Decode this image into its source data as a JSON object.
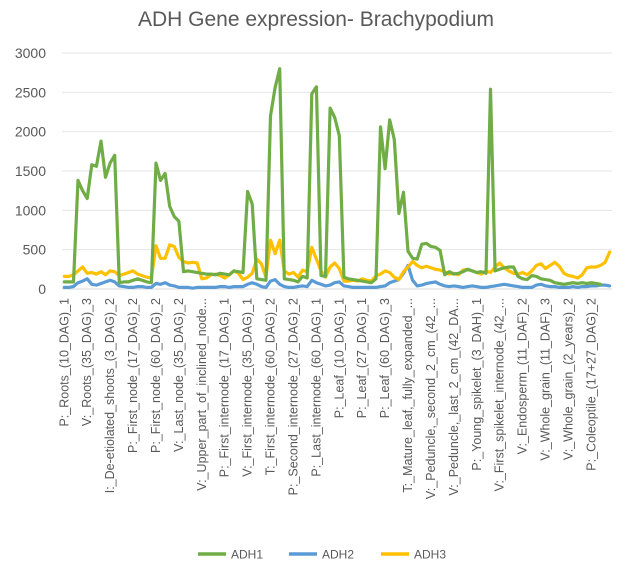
{
  "chart_data": {
    "type": "line",
    "title": "ADH Gene expression- Brachypodium",
    "ylim": [
      0,
      3000
    ],
    "yticks": [
      0,
      500,
      1000,
      1500,
      2000,
      2500,
      3000
    ],
    "grid": true,
    "legend_position": "bottom",
    "n_points": 120,
    "x_tick_labels": [
      {
        "index": 0,
        "label": "P:_Roots_(10_DAG)_1"
      },
      {
        "index": 5,
        "label": "V:_Roots_(35_DAG)_3"
      },
      {
        "index": 10,
        "label": "I:_De-etiolated_shoots_(3_DAG)_2"
      },
      {
        "index": 15,
        "label": "P:_First_node_(17_DAG)_2"
      },
      {
        "index": 20,
        "label": "P:_First_node_(60_DAG)_2"
      },
      {
        "index": 25,
        "label": "V:_Last_node_(35_DAG)_2"
      },
      {
        "index": 30,
        "label": "V:_Upper_part_of_inclined_node..."
      },
      {
        "index": 35,
        "label": "P:_First_internode_(17_DAG)_1"
      },
      {
        "index": 40,
        "label": "V:_First_internode_(35_DAG)_1"
      },
      {
        "index": 45,
        "label": "T:_First_internode_(60_DAG)_2"
      },
      {
        "index": 50,
        "label": "P:_Second_internode_(27_DAG)_2"
      },
      {
        "index": 55,
        "label": "P:_Last_internode_(60_DAG)_1"
      },
      {
        "index": 60,
        "label": "P:_Leaf_(10_DAG)_1"
      },
      {
        "index": 65,
        "label": "P:_Leaf_(27_DAG)_1"
      },
      {
        "index": 70,
        "label": "P:_Leaf_(60_DAG)_3"
      },
      {
        "index": 75,
        "label": "T:_Mature_leaf,_fully_expanded_..."
      },
      {
        "index": 80,
        "label": "V:_Peduncle,_second_2_cm_(42_..."
      },
      {
        "index": 85,
        "label": "V:_Peduncle,_last_2_cm_(42_DA..."
      },
      {
        "index": 90,
        "label": "P:_Young_spikelet_(3_DAH)_1"
      },
      {
        "index": 95,
        "label": "V:_First_spikelet_internode_(42_..."
      },
      {
        "index": 100,
        "label": "V:_Endosperm_(11_DAF)_2"
      },
      {
        "index": 105,
        "label": "V:_Whole_grain_(11_DAF)_3"
      },
      {
        "index": 110,
        "label": "V:_Whole_grain_(2_years)_2"
      },
      {
        "index": 115,
        "label": "P:_Coleoptile_(17+27_DAG)_2"
      }
    ],
    "series": [
      {
        "name": "ADH1",
        "color": "#70ad47",
        "values": [
          90,
          90,
          90,
          1380,
          1250,
          1150,
          1580,
          1560,
          1880,
          1420,
          1600,
          1700,
          80,
          90,
          90,
          110,
          130,
          110,
          90,
          80,
          1600,
          1380,
          1470,
          1050,
          920,
          860,
          220,
          230,
          220,
          210,
          200,
          190,
          190,
          180,
          200,
          190,
          180,
          230,
          220,
          210,
          1240,
          1080,
          130,
          120,
          110,
          2200,
          2560,
          2800,
          130,
          120,
          110,
          90,
          160,
          140,
          2480,
          2570,
          170,
          160,
          2300,
          2180,
          1950,
          150,
          130,
          120,
          110,
          100,
          90,
          80,
          130,
          2060,
          1530,
          2150,
          1900,
          960,
          1230,
          480,
          390,
          380,
          570,
          580,
          540,
          530,
          490,
          180,
          220,
          190,
          200,
          220,
          250,
          230,
          210,
          220,
          200,
          2540,
          230,
          250,
          270,
          280,
          280,
          160,
          130,
          120,
          170,
          160,
          130,
          120,
          110,
          80,
          70,
          60,
          70,
          80,
          70,
          80,
          70,
          80,
          70,
          60
        ]
      },
      {
        "name": "ADH2",
        "color": "#5b9bd5",
        "values": [
          20,
          20,
          30,
          80,
          100,
          130,
          60,
          50,
          70,
          90,
          110,
          90,
          40,
          30,
          20,
          20,
          30,
          30,
          20,
          20,
          70,
          60,
          80,
          50,
          40,
          20,
          20,
          20,
          10,
          20,
          20,
          20,
          20,
          20,
          30,
          30,
          20,
          30,
          30,
          30,
          60,
          80,
          60,
          30,
          20,
          100,
          120,
          60,
          30,
          20,
          20,
          30,
          40,
          30,
          110,
          80,
          60,
          40,
          50,
          80,
          90,
          40,
          30,
          20,
          20,
          20,
          20,
          20,
          20,
          30,
          40,
          80,
          100,
          120,
          200,
          300,
          110,
          40,
          50,
          70,
          80,
          90,
          60,
          40,
          30,
          40,
          30,
          20,
          30,
          40,
          30,
          20,
          20,
          30,
          40,
          50,
          60,
          50,
          40,
          30,
          20,
          20,
          20,
          50,
          60,
          40,
          30,
          30,
          20,
          20,
          20,
          30,
          20,
          30,
          30,
          40,
          40,
          50,
          50,
          40
        ]
      },
      {
        "name": "ADH3",
        "color": "#ffc000",
        "values": [
          160,
          160,
          180,
          230,
          280,
          200,
          210,
          190,
          220,
          180,
          230,
          220,
          170,
          190,
          210,
          230,
          190,
          170,
          150,
          140,
          550,
          390,
          390,
          560,
          540,
          400,
          350,
          330,
          340,
          330,
          130,
          140,
          180,
          190,
          170,
          140,
          180,
          230,
          200,
          120,
          150,
          200,
          380,
          320,
          150,
          620,
          450,
          620,
          230,
          190,
          210,
          150,
          240,
          220,
          530,
          380,
          230,
          150,
          280,
          330,
          260,
          100,
          100,
          110,
          100,
          130,
          110,
          100,
          170,
          190,
          230,
          210,
          150,
          120,
          220,
          280,
          350,
          300,
          270,
          290,
          270,
          250,
          240,
          220,
          190,
          200,
          180,
          240,
          250,
          230,
          210,
          190,
          230,
          210,
          280,
          330,
          270,
          230,
          200,
          190,
          210,
          180,
          230,
          300,
          320,
          260,
          300,
          340,
          290,
          200,
          170,
          160,
          140,
          180,
          270,
          280,
          280,
          300,
          340,
          470
        ]
      }
    ]
  }
}
